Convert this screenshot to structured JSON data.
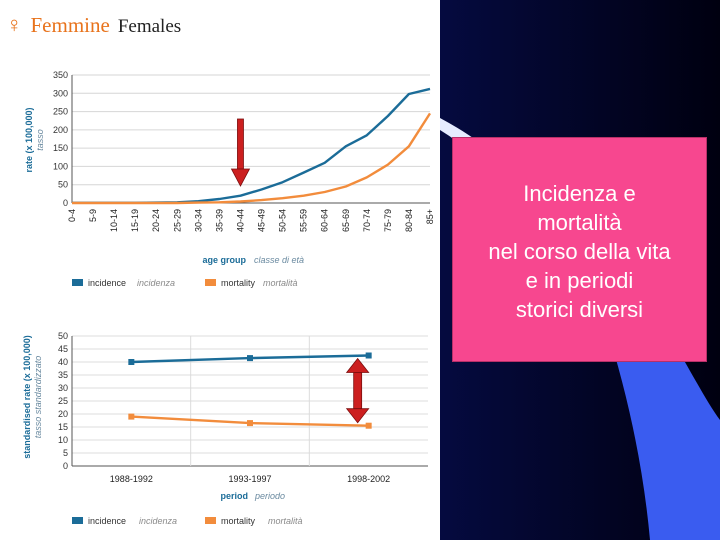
{
  "header": {
    "symbol": "♀",
    "title_it": "Femmine",
    "title_en": "Females"
  },
  "callout": {
    "text": "Incidenza e\nmortalità\nnel corso della vita\ne in periodi\nstorici diversi"
  },
  "colors": {
    "incidence": "#1b6c98",
    "mortality": "#f28c3c",
    "arrow_red": "#cc1f1f",
    "arrow_dark": "#7a0d0d",
    "callout_bg": "#f7478f"
  },
  "chart_data": [
    {
      "type": "line",
      "ylabel": "rate (x 100,000)",
      "ylabel_it": "tasso",
      "xlabel": "age group",
      "xlabel_it": "classe di età",
      "ylim": [
        0,
        350
      ],
      "yticks": [
        0,
        50,
        100,
        150,
        200,
        250,
        300,
        350
      ],
      "categories": [
        "0-4",
        "5-9",
        "10-14",
        "15-19",
        "20-24",
        "25-29",
        "30-34",
        "35-39",
        "40-44",
        "45-49",
        "50-54",
        "55-59",
        "60-64",
        "65-69",
        "70-74",
        "75-79",
        "80-84",
        "85+"
      ],
      "series": [
        {
          "name": "incidence",
          "name_it": "incidenza",
          "color": "#1b6c98",
          "values": [
            0.5,
            0.5,
            0.5,
            0.5,
            1,
            2,
            5,
            11,
            20,
            37,
            57,
            83,
            110,
            155,
            185,
            238,
            298,
            312
          ]
        },
        {
          "name": "mortality",
          "name_it": "mortalità",
          "color": "#f28c3c",
          "values": [
            0,
            0,
            0,
            0,
            0,
            0,
            1,
            2,
            4,
            8,
            13,
            20,
            30,
            45,
            70,
            105,
            155,
            245
          ]
        }
      ],
      "annotation": "down-arrow"
    },
    {
      "type": "line",
      "ylabel": "standardised rate (x 100,000)",
      "ylabel_it": "tasso standardizzato",
      "xlabel": "period",
      "xlabel_it": "periodo",
      "ylim": [
        0,
        50
      ],
      "yticks": [
        0,
        5,
        10,
        15,
        20,
        25,
        30,
        35,
        40,
        45,
        50
      ],
      "categories": [
        "1988-1992",
        "1993-1997",
        "1998-2002"
      ],
      "series": [
        {
          "name": "incidence",
          "name_it": "incidenza",
          "color": "#1b6c98",
          "values": [
            40,
            41.5,
            42.5
          ]
        },
        {
          "name": "mortality",
          "name_it": "mortalità",
          "color": "#f28c3c",
          "values": [
            19,
            16.5,
            15.5
          ]
        }
      ],
      "annotation": "double-arrow"
    }
  ]
}
